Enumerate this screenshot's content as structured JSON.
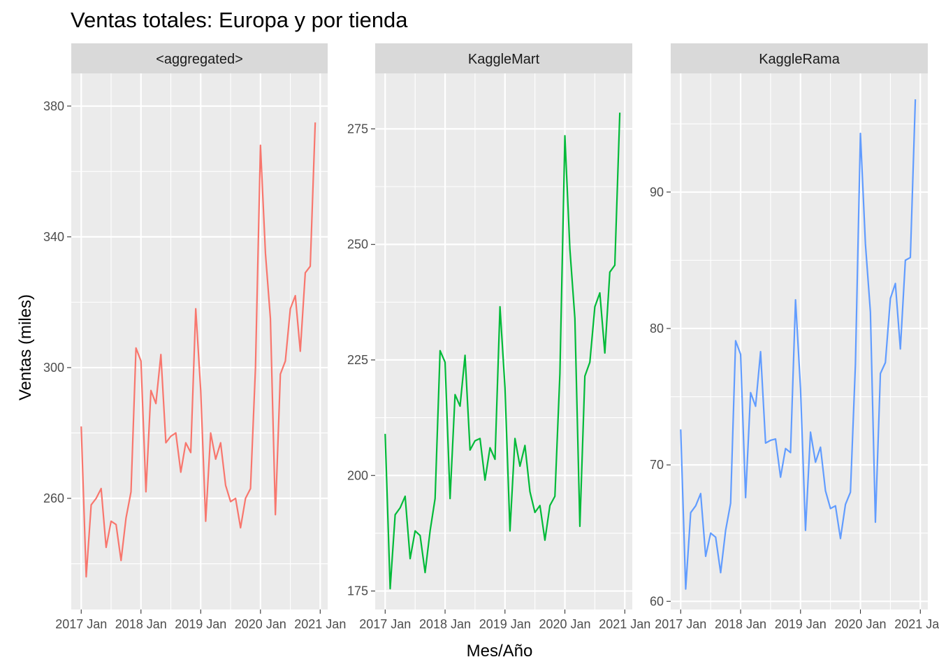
{
  "chart_data": {
    "type": "line",
    "title": "Ventas totales: Europa y por tienda",
    "xlabel": "Mes/Año",
    "ylabel": "Ventas (miles)",
    "x_ticks": [
      "2017 Jan",
      "2018 Jan",
      "2019 Jan",
      "2020 Jan",
      "2021 Jan"
    ],
    "x_tick_positions": [
      0,
      12,
      24,
      36,
      48
    ],
    "x_range": [
      -2,
      49.5
    ],
    "grid": true,
    "facets": [
      {
        "label": "<aggregated>",
        "color": "#F8766D",
        "ylim": [
          226,
          390
        ],
        "y_ticks": [
          260,
          300,
          340,
          380
        ],
        "values": [
          282,
          236,
          258,
          260,
          263,
          245,
          253,
          252,
          241,
          254,
          262,
          306,
          302,
          262,
          293,
          289,
          304,
          277,
          279,
          280,
          268,
          277,
          274,
          318,
          293,
          253,
          280,
          272,
          277,
          264,
          259,
          260,
          251,
          260,
          263,
          300,
          368,
          335,
          315,
          255,
          298,
          302,
          318,
          322,
          305,
          329,
          331,
          375
        ]
      },
      {
        "label": "KaggleMart",
        "color": "#00BA38",
        "ylim": [
          171,
          287
        ],
        "y_ticks": [
          175,
          200,
          225,
          250,
          275
        ],
        "values": [
          209,
          175.5,
          191.5,
          193,
          195.5,
          182,
          188,
          187,
          179,
          188,
          195,
          227,
          224.5,
          195,
          217.5,
          215,
          226,
          205.5,
          207.5,
          208,
          199,
          206,
          203.5,
          236.5,
          219,
          188,
          208,
          202,
          206.5,
          196.5,
          192,
          193.5,
          186,
          193.5,
          195.5,
          222,
          273.5,
          249,
          234,
          189,
          221.5,
          224.5,
          236.5,
          239.5,
          226.5,
          244,
          245.5,
          278.5
        ]
      },
      {
        "label": "KaggleRama",
        "color": "#619CFF",
        "ylim": [
          59.4,
          98.7
        ],
        "y_ticks": [
          60,
          70,
          80,
          90
        ],
        "values": [
          72.6,
          60.9,
          66.5,
          67,
          67.9,
          63.3,
          65,
          64.7,
          62.1,
          65.2,
          67.2,
          79.1,
          78.1,
          67.6,
          75.3,
          74.3,
          78.3,
          71.6,
          71.8,
          71.9,
          69.1,
          71.2,
          70.9,
          82.1,
          75.6,
          65.2,
          72.4,
          70.2,
          71.3,
          68.1,
          66.8,
          67,
          64.6,
          67.1,
          68,
          77.4,
          94.3,
          86.2,
          81.2,
          65.8,
          76.7,
          77.5,
          82.2,
          83.3,
          78.5,
          85,
          85.2,
          96.8
        ]
      }
    ]
  }
}
